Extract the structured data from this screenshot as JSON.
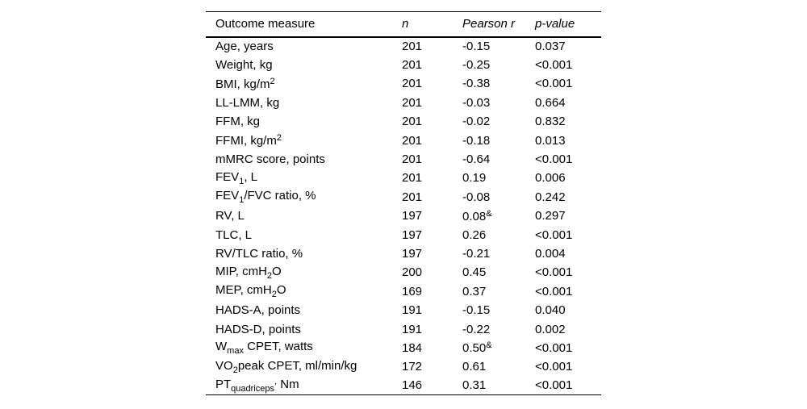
{
  "page": {
    "background_color": "#ffffff",
    "text_color": "#000000",
    "rule_color": "#000000"
  },
  "table": {
    "columns": [
      {
        "label": "Outcome measure",
        "italic": false
      },
      {
        "label": "n",
        "italic": true
      },
      {
        "label": "Pearson r",
        "italic": true
      },
      {
        "label": "p-value",
        "italic": true
      }
    ],
    "rows": [
      {
        "measure": [
          {
            "t": "Age, years"
          }
        ],
        "n": "201",
        "r": [
          {
            "t": "-0.15"
          }
        ],
        "p": "0.037"
      },
      {
        "measure": [
          {
            "t": "Weight, kg"
          }
        ],
        "n": "201",
        "r": [
          {
            "t": "-0.25"
          }
        ],
        "p": "<0.001"
      },
      {
        "measure": [
          {
            "t": "BMI, kg/m"
          },
          {
            "t": "2",
            "s": "sup"
          }
        ],
        "n": "201",
        "r": [
          {
            "t": "-0.38"
          }
        ],
        "p": "<0.001"
      },
      {
        "measure": [
          {
            "t": "LL-LMM, kg"
          }
        ],
        "n": "201",
        "r": [
          {
            "t": "-0.03"
          }
        ],
        "p": "0.664"
      },
      {
        "measure": [
          {
            "t": "FFM, kg"
          }
        ],
        "n": "201",
        "r": [
          {
            "t": "-0.02"
          }
        ],
        "p": "0.832"
      },
      {
        "measure": [
          {
            "t": "FFMI, kg/m"
          },
          {
            "t": "2",
            "s": "sup"
          }
        ],
        "n": "201",
        "r": [
          {
            "t": "-0.18"
          }
        ],
        "p": "0.013"
      },
      {
        "measure": [
          {
            "t": "mMRC score, points"
          }
        ],
        "n": "201",
        "r": [
          {
            "t": "-0.64"
          }
        ],
        "p": "<0.001"
      },
      {
        "measure": [
          {
            "t": "FEV"
          },
          {
            "t": "1",
            "s": "sub"
          },
          {
            "t": ", L"
          }
        ],
        "n": "201",
        "r": [
          {
            "t": "0.19"
          }
        ],
        "p": "0.006"
      },
      {
        "measure": [
          {
            "t": "FEV"
          },
          {
            "t": "1",
            "s": "sub"
          },
          {
            "t": "/FVC ratio, %"
          }
        ],
        "n": "201",
        "r": [
          {
            "t": "-0.08"
          }
        ],
        "p": "0.242"
      },
      {
        "measure": [
          {
            "t": "RV, L"
          }
        ],
        "n": "197",
        "r": [
          {
            "t": "0.08"
          },
          {
            "t": "&",
            "s": "sup"
          }
        ],
        "p": "0.297"
      },
      {
        "measure": [
          {
            "t": "TLC, L"
          }
        ],
        "n": "197",
        "r": [
          {
            "t": "0.26"
          }
        ],
        "p": "<0.001"
      },
      {
        "measure": [
          {
            "t": "RV/TLC ratio, %"
          }
        ],
        "n": "197",
        "r": [
          {
            "t": "-0.21"
          }
        ],
        "p": "0.004"
      },
      {
        "measure": [
          {
            "t": "MIP, cmH"
          },
          {
            "t": "2",
            "s": "sub"
          },
          {
            "t": "O"
          }
        ],
        "n": "200",
        "r": [
          {
            "t": "0.45"
          }
        ],
        "p": "<0.001"
      },
      {
        "measure": [
          {
            "t": "MEP, cmH"
          },
          {
            "t": "2",
            "s": "sub"
          },
          {
            "t": "O"
          }
        ],
        "n": "169",
        "r": [
          {
            "t": "0.37"
          }
        ],
        "p": "<0.001"
      },
      {
        "measure": [
          {
            "t": "HADS-A, points"
          }
        ],
        "n": "191",
        "r": [
          {
            "t": "-0.15"
          }
        ],
        "p": "0.040"
      },
      {
        "measure": [
          {
            "t": "HADS-D, points"
          }
        ],
        "n": "191",
        "r": [
          {
            "t": "-0.22"
          }
        ],
        "p": "0.002"
      },
      {
        "measure": [
          {
            "t": "W"
          },
          {
            "t": "max",
            "s": "sub"
          },
          {
            "t": " CPET, watts"
          }
        ],
        "n": "184",
        "r": [
          {
            "t": "0.50"
          },
          {
            "t": "&",
            "s": "sup"
          }
        ],
        "p": "<0.001"
      },
      {
        "measure": [
          {
            "t": "VO"
          },
          {
            "t": "2",
            "s": "sub"
          },
          {
            "t": "peak CPET, ml/min/kg"
          }
        ],
        "n": "172",
        "r": [
          {
            "t": "0.61"
          }
        ],
        "p": "<0.001"
      },
      {
        "measure": [
          {
            "t": "PT"
          },
          {
            "t": "quadriceps",
            "s": "sub"
          },
          {
            "t": ",",
            "s": "sup"
          },
          {
            "t": " Nm"
          }
        ],
        "n": "146",
        "r": [
          {
            "t": "0.31"
          }
        ],
        "p": "<0.001"
      }
    ]
  }
}
